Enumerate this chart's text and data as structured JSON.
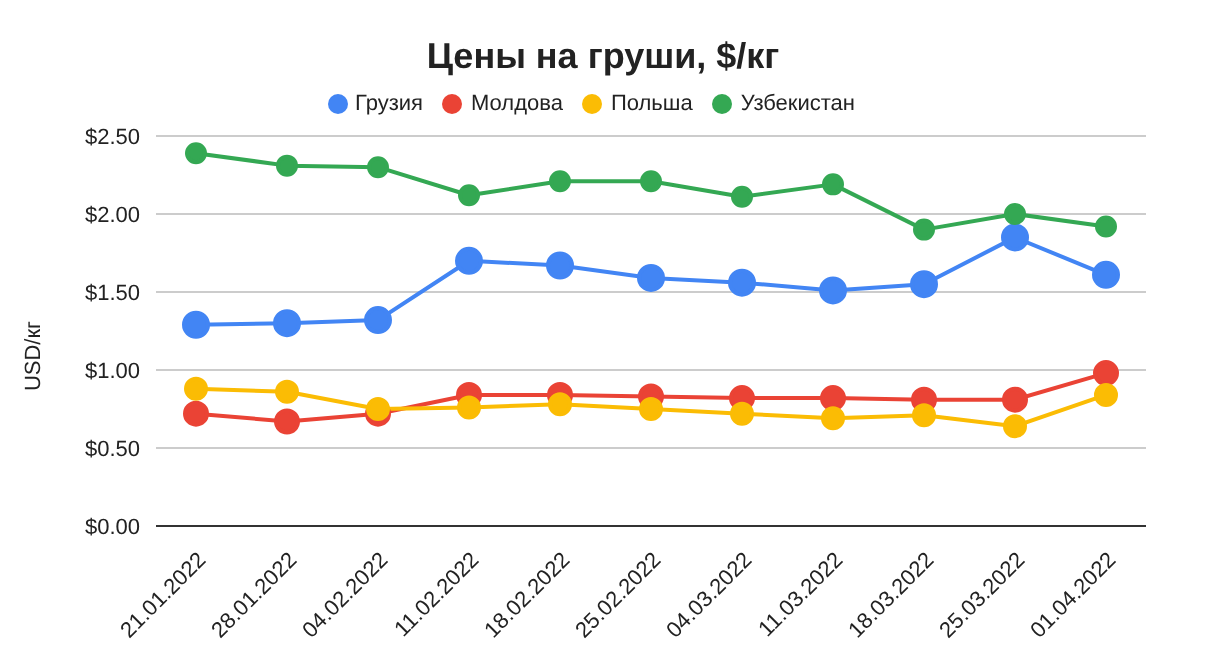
{
  "chart_data": {
    "type": "line",
    "title": "Цены на груши, $/кг",
    "ylabel": "USD/кг",
    "categories": [
      "21.01.2022",
      "28.01.2022",
      "04.02.2022",
      "11.02.2022",
      "18.02.2022",
      "25.02.2022",
      "04.03.2022",
      "11.03.2022",
      "18.03.2022",
      "25.03.2022",
      "01.04.2022"
    ],
    "series": [
      {
        "name": "Грузия",
        "color": "#4285f4",
        "values": [
          1.29,
          1.3,
          1.32,
          1.7,
          1.67,
          1.59,
          1.56,
          1.51,
          1.55,
          1.85,
          1.61
        ]
      },
      {
        "name": "Молдова",
        "color": "#ea4335",
        "values": [
          0.72,
          0.67,
          0.72,
          0.84,
          0.84,
          0.83,
          0.82,
          0.82,
          0.81,
          0.81,
          0.98
        ]
      },
      {
        "name": "Польша",
        "color": "#fbbc04",
        "values": [
          0.88,
          0.86,
          0.75,
          0.76,
          0.78,
          0.75,
          0.72,
          0.69,
          0.71,
          0.64,
          0.84
        ]
      },
      {
        "name": "Узбекистан",
        "color": "#34a853",
        "values": [
          2.39,
          2.31,
          2.3,
          2.12,
          2.21,
          2.21,
          2.11,
          2.19,
          1.9,
          2.0,
          1.92
        ]
      }
    ],
    "ylim": [
      0,
      2.5
    ],
    "yticks": [
      {
        "value": 0,
        "label": "$0.00"
      },
      {
        "value": 0.5,
        "label": "$0.50"
      },
      {
        "value": 1,
        "label": "$1.00"
      },
      {
        "value": 1.5,
        "label": "$1.50"
      },
      {
        "value": 2,
        "label": "$2.00"
      },
      {
        "value": 2.5,
        "label": "$2.50"
      }
    ],
    "grid": "y",
    "legend": "top",
    "marker": "circle",
    "line_style": "solid"
  }
}
